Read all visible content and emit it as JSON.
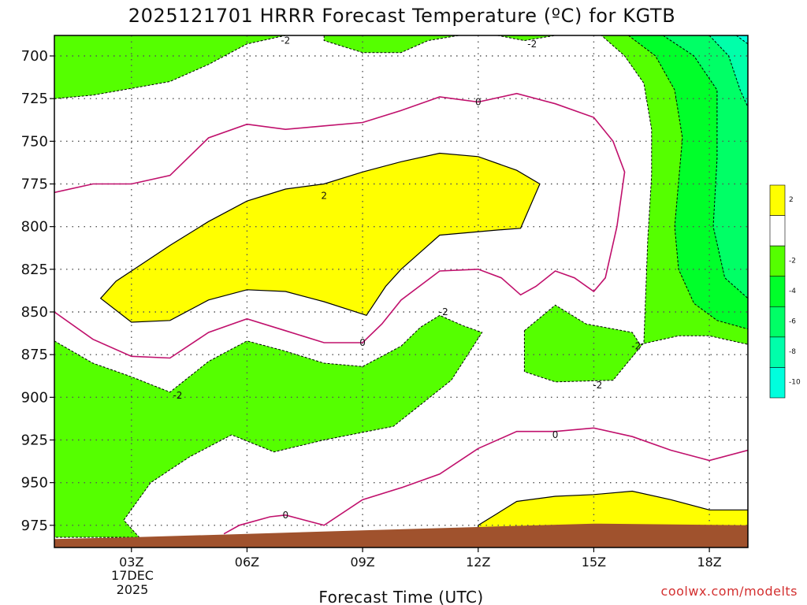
{
  "chart_data": {
    "type": "heatmap",
    "title": "2025121701 HRRR Forecast Temperature (ºC) for KGTB",
    "xlabel": "Forecast Time (UTC)",
    "ylabel": "",
    "x_range_hours": [
      1,
      19
    ],
    "y_range_hPa": [
      988,
      688
    ],
    "y_ticks": [
      "700",
      "725",
      "750",
      "775",
      "800",
      "825",
      "850",
      "875",
      "900",
      "925",
      "950",
      "975"
    ],
    "x_ticks": [
      {
        "hour": 3,
        "label": "03Z"
      },
      {
        "hour": 6,
        "label": "06Z"
      },
      {
        "hour": 9,
        "label": "09Z"
      },
      {
        "hour": 12,
        "label": "12Z"
      },
      {
        "hour": 15,
        "label": "15Z"
      },
      {
        "hour": 18,
        "label": "18Z"
      }
    ],
    "date_label": [
      "17DEC",
      "2025"
    ],
    "grid": true,
    "colorbar": {
      "placement": "right",
      "levels": [
        {
          "label": "2",
          "color": "#ffff00"
        },
        {
          "label": "",
          "color": "#ffffff"
        },
        {
          "label": "-2",
          "color": "#55ff00"
        },
        {
          "label": "-4",
          "color": "#00ff2a"
        },
        {
          "label": "-6",
          "color": "#00ff66"
        },
        {
          "label": "-8",
          "color": "#00ffaa"
        },
        {
          "label": "-10",
          "color": "#00ffdd"
        }
      ]
    },
    "colors": {
      "warm_2C": "#ffff00",
      "near_zero": "#ffffff",
      "cold_m2": "#55ff00",
      "cold_m4": "#00ff2a",
      "cold_m6": "#00ff66",
      "cold_m8": "#00ffaa",
      "cold_m10": "#00ffdd",
      "zero_line": "#c0106c",
      "ground": "#a0522d"
    },
    "contour_labels": [
      {
        "hour": 7.0,
        "p": 691,
        "text": "-2"
      },
      {
        "hour": 13.4,
        "p": 693,
        "text": "-2"
      },
      {
        "hour": 12.0,
        "p": 727,
        "text": "0"
      },
      {
        "hour": 8.0,
        "p": 782,
        "text": "2"
      },
      {
        "hour": 11.1,
        "p": 850,
        "text": "-2"
      },
      {
        "hour": 9.0,
        "p": 868,
        "text": "0"
      },
      {
        "hour": 4.2,
        "p": 899,
        "text": "-2"
      },
      {
        "hour": 16.1,
        "p": 870,
        "text": "-2"
      },
      {
        "hour": 15.1,
        "p": 893,
        "text": "-2"
      },
      {
        "hour": 14.0,
        "p": 922,
        "text": "0"
      },
      {
        "hour": 7.0,
        "p": 969,
        "text": "0"
      }
    ],
    "green_regions": [
      [
        [
          1,
          688
        ],
        [
          1,
          725
        ],
        [
          2,
          723
        ],
        [
          4,
          715
        ],
        [
          5,
          705
        ],
        [
          6,
          693
        ],
        [
          7,
          688
        ]
      ],
      [
        [
          8,
          688
        ],
        [
          8,
          691
        ],
        [
          9,
          698
        ],
        [
          10,
          698
        ],
        [
          10.7,
          691
        ],
        [
          11.5,
          688
        ]
      ],
      [
        [
          12.5,
          688
        ],
        [
          13.2,
          691
        ],
        [
          14,
          688
        ]
      ],
      [
        [
          1,
          867
        ],
        [
          2,
          880
        ],
        [
          3,
          888
        ],
        [
          4,
          897
        ],
        [
          5,
          879
        ],
        [
          6,
          867
        ],
        [
          7,
          873
        ],
        [
          8,
          880
        ],
        [
          9,
          882
        ],
        [
          10,
          870
        ],
        [
          10.5,
          859
        ],
        [
          11,
          852
        ],
        [
          11.6,
          858
        ],
        [
          12.1,
          862
        ],
        [
          11.3,
          890
        ],
        [
          9.8,
          917
        ],
        [
          8,
          925
        ],
        [
          6.7,
          932
        ],
        [
          5.6,
          922
        ],
        [
          4.5,
          935
        ],
        [
          3.5,
          950
        ],
        [
          2.8,
          972
        ],
        [
          3.2,
          982
        ],
        [
          1,
          982
        ]
      ],
      [
        [
          13.2,
          861
        ],
        [
          14,
          846
        ],
        [
          14.8,
          857
        ],
        [
          16,
          862
        ],
        [
          16.2,
          869
        ],
        [
          17.2,
          864
        ],
        [
          18,
          864
        ],
        [
          19,
          869
        ],
        [
          19,
          688
        ],
        [
          15.2,
          688
        ],
        [
          15.8,
          700
        ],
        [
          16.3,
          716
        ],
        [
          16.5,
          743
        ],
        [
          16.5,
          770
        ],
        [
          16.4,
          808
        ],
        [
          16.3,
          868
        ],
        [
          15.5,
          890
        ],
        [
          14,
          891
        ],
        [
          13.2,
          885
        ]
      ]
    ],
    "yellow_regions": [
      [
        [
          2.2,
          842
        ],
        [
          2.6,
          832
        ],
        [
          3.2,
          823
        ],
        [
          4,
          811
        ],
        [
          5,
          797
        ],
        [
          6,
          785
        ],
        [
          7,
          778
        ],
        [
          8,
          775
        ],
        [
          9,
          768
        ],
        [
          10,
          762
        ],
        [
          11,
          757
        ],
        [
          12,
          759
        ],
        [
          13,
          767
        ],
        [
          13.6,
          775
        ],
        [
          13.1,
          801
        ],
        [
          12.5,
          802
        ],
        [
          11,
          805
        ],
        [
          10.5,
          815
        ],
        [
          10,
          825
        ],
        [
          9.6,
          835
        ],
        [
          9.1,
          852
        ],
        [
          8,
          844
        ],
        [
          7,
          838
        ],
        [
          6,
          837
        ],
        [
          5,
          843
        ],
        [
          4,
          855
        ],
        [
          3,
          856
        ],
        [
          2.2,
          842
        ]
      ],
      [
        [
          12,
          975
        ],
        [
          12.5,
          968
        ],
        [
          13,
          961
        ],
        [
          14,
          958
        ],
        [
          15,
          957
        ],
        [
          16,
          955
        ],
        [
          17,
          960
        ],
        [
          18,
          966
        ],
        [
          19,
          966
        ],
        [
          19,
          988
        ],
        [
          12,
          988
        ]
      ]
    ],
    "zero_lines": [
      [
        [
          1,
          780
        ],
        [
          2,
          775
        ],
        [
          3,
          775
        ],
        [
          4,
          770
        ],
        [
          5,
          748
        ],
        [
          6,
          740
        ],
        [
          7,
          743
        ],
        [
          8,
          741
        ],
        [
          9,
          739
        ],
        [
          10,
          732
        ],
        [
          11,
          724
        ],
        [
          12,
          727
        ],
        [
          13,
          722
        ],
        [
          14,
          728
        ],
        [
          15,
          736
        ],
        [
          15.5,
          750
        ],
        [
          15.8,
          768
        ],
        [
          15.6,
          800
        ],
        [
          15.3,
          830
        ],
        [
          15,
          838
        ],
        [
          14.5,
          830
        ],
        [
          14,
          826
        ],
        [
          13.5,
          835
        ],
        [
          13.1,
          840
        ],
        [
          12.6,
          830
        ],
        [
          12,
          825
        ],
        [
          11,
          826
        ],
        [
          10,
          843
        ],
        [
          9.5,
          857
        ],
        [
          9,
          868
        ],
        [
          8,
          868
        ],
        [
          7,
          861
        ],
        [
          6,
          854
        ],
        [
          5,
          862
        ],
        [
          4,
          877
        ],
        [
          3,
          876
        ],
        [
          2,
          866
        ],
        [
          1,
          850
        ]
      ],
      [
        [
          12,
          930
        ],
        [
          13,
          920
        ],
        [
          14,
          920
        ],
        [
          15,
          918
        ],
        [
          16,
          923
        ],
        [
          17,
          931
        ],
        [
          18,
          937
        ],
        [
          19,
          931
        ]
      ],
      [
        [
          5.4,
          980
        ],
        [
          5.8,
          975
        ],
        [
          6.6,
          970
        ],
        [
          7,
          969
        ],
        [
          8,
          975
        ],
        [
          9,
          960
        ],
        [
          10,
          953
        ],
        [
          11,
          945
        ],
        [
          12,
          930
        ]
      ]
    ],
    "cold_lines": [
      [
        [
          15.9,
          688
        ],
        [
          16.6,
          700
        ],
        [
          17.1,
          720
        ],
        [
          17.3,
          748
        ],
        [
          17.1,
          800
        ],
        [
          17.2,
          825
        ],
        [
          17.6,
          845
        ],
        [
          18.2,
          855
        ],
        [
          19,
          860
        ]
      ],
      [
        [
          16.8,
          688
        ],
        [
          17.6,
          700
        ],
        [
          18.2,
          720
        ],
        [
          18.2,
          760
        ],
        [
          18.1,
          800
        ],
        [
          18.4,
          830
        ],
        [
          19,
          842
        ]
      ],
      [
        [
          18.0,
          688
        ],
        [
          18.5,
          700
        ],
        [
          18.8,
          720
        ],
        [
          19,
          730
        ]
      ],
      [
        [
          18.7,
          688
        ],
        [
          19,
          693
        ]
      ]
    ],
    "cold_regions": [
      {
        "level": "m4",
        "poly": [
          [
            15.9,
            688
          ],
          [
            16.6,
            700
          ],
          [
            17.1,
            720
          ],
          [
            17.3,
            748
          ],
          [
            17.1,
            800
          ],
          [
            17.2,
            825
          ],
          [
            17.6,
            845
          ],
          [
            18.2,
            855
          ],
          [
            19,
            860
          ],
          [
            19,
            688
          ]
        ]
      },
      {
        "level": "m6",
        "poly": [
          [
            16.8,
            688
          ],
          [
            17.6,
            700
          ],
          [
            18.2,
            720
          ],
          [
            18.2,
            760
          ],
          [
            18.1,
            800
          ],
          [
            18.4,
            830
          ],
          [
            19,
            842
          ],
          [
            19,
            688
          ]
        ]
      },
      {
        "level": "m8",
        "poly": [
          [
            18.0,
            688
          ],
          [
            18.5,
            700
          ],
          [
            18.8,
            720
          ],
          [
            19,
            730
          ],
          [
            19,
            688
          ]
        ]
      },
      {
        "level": "m10",
        "poly": [
          [
            18.7,
            688
          ],
          [
            19,
            693
          ],
          [
            19,
            688
          ]
        ]
      }
    ],
    "ground_surface": [
      [
        1,
        983
      ],
      [
        3,
        982
      ],
      [
        6,
        980
      ],
      [
        9,
        978
      ],
      [
        12,
        976
      ],
      [
        15,
        974
      ],
      [
        19,
        975
      ]
    ]
  },
  "credit": "coolwx.com/modelts"
}
